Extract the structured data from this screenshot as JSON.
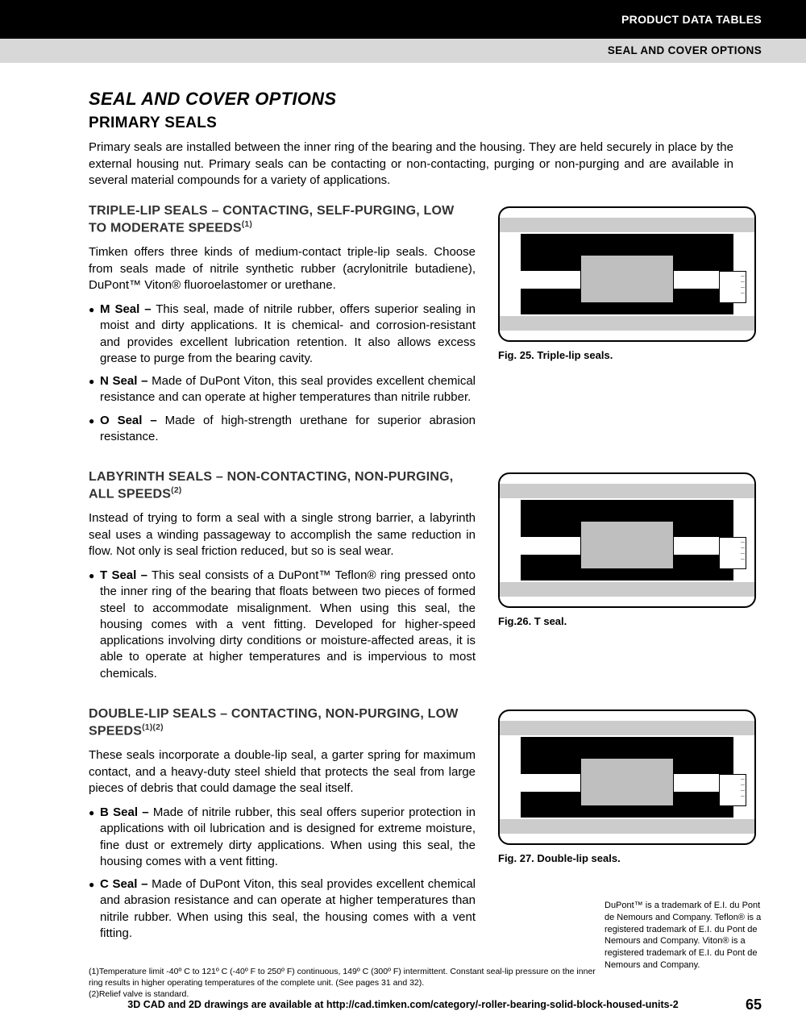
{
  "header": {
    "top": "PRODUCT DATA TABLES",
    "sub": "SEAL AND COVER OPTIONS"
  },
  "title": "SEAL AND COVER OPTIONS",
  "subtitle": "PRIMARY SEALS",
  "intro": "Primary seals are installed between the inner ring of the bearing and the housing. They are held securely in place by the external housing nut. Primary seals can be contacting or non-contacting, purging or non-purging and are available in several material compounds for a variety of applications.",
  "sections": [
    {
      "heading": "TRIPLE-LIP SEALS – CONTACTING, SELF-PURGING, LOW TO MODERATE SPEEDS",
      "sup": "(1)",
      "lead": "Timken offers three kinds of medium-contact triple-lip seals. Choose from seals made of nitrile synthetic rubber (acrylonitrile butadiene), DuPont™ Viton® fluoroelastomer or urethane.",
      "bullets": [
        {
          "b": "M Seal –",
          "t": " This seal, made of nitrile rubber, offers superior sealing in moist and dirty applications. It is chemical- and corrosion-resistant and provides excellent lubrication retention. It also allows excess grease to purge from the bearing cavity."
        },
        {
          "b": "N Seal –",
          "t": " Made of DuPont Viton, this seal provides excellent chemical resistance and can operate at higher temperatures than nitrile rubber."
        },
        {
          "b": "O Seal –",
          "t": " Made of high-strength urethane for superior abrasion resistance."
        }
      ],
      "caption": "Fig. 25. Triple-lip seals."
    },
    {
      "heading": "LABYRINTH SEALS – NON-CONTACTING, NON-PURGING, ALL SPEEDS",
      "sup": "(2)",
      "lead": "Instead of trying to form a seal with a single strong barrier, a labyrinth seal uses a winding passageway to accomplish the same reduction in flow. Not only is seal friction reduced, but so is seal wear.",
      "bullets": [
        {
          "b": "T Seal –",
          "t": " This seal consists of a DuPont™ Teflon® ring pressed onto the inner ring of the bearing that floats between two pieces of formed steel to accommodate misalignment. When using this seal, the housing comes with a vent fitting. Developed for higher-speed applications involving dirty conditions or moisture-affected areas, it is able to operate at higher temperatures and is impervious to most chemicals."
        }
      ],
      "caption": "Fig.26. T seal."
    },
    {
      "heading": "DOUBLE-LIP SEALS – CONTACTING, NON-PURGING, LOW SPEEDS",
      "sup": "(1)(2)",
      "lead": "These seals incorporate a double-lip seal, a garter spring for maximum contact, and a heavy-duty steel shield that protects the seal from large pieces of debris that could damage the seal itself.",
      "bullets": [
        {
          "b": "B Seal –",
          "t": " Made of nitrile rubber, this seal offers superior protection in applications with oil lubrication and is designed for extreme moisture, fine dust or extremely dirty applications. When using this seal, the housing comes with a vent fitting."
        },
        {
          "b": "C Seal –",
          "t": " Made of DuPont Viton, this seal provides excellent chemical and abrasion resistance and can operate at higher temperatures than nitrile rubber. When using this seal, the housing comes with a vent fitting."
        }
      ],
      "caption": "Fig. 27. Double-lip seals."
    }
  ],
  "footnotes": [
    "(1)Temperature limit -40º C to 121º C (-40º F to 250º F) continuous, 149º C (300º F) intermittent. Constant seal-lip pressure on the inner ring results in higher operating temperatures of the complete unit. (See pages 31 and 32).",
    "(2)Relief valve is standard."
  ],
  "trademark": "DuPont™ is a trademark of E.I. du Pont de Nemours and Company. Teflon® is a registered trademark of E.I. du Pont de Nemours and Company. Viton® is a registered trademark of E.I. du Pont de Nemours and Company.",
  "footer": "3D CAD and 2D drawings are available at http://cad.timken.com/category/-roller-bearing-solid-block-housed-units-2",
  "folio": "65"
}
